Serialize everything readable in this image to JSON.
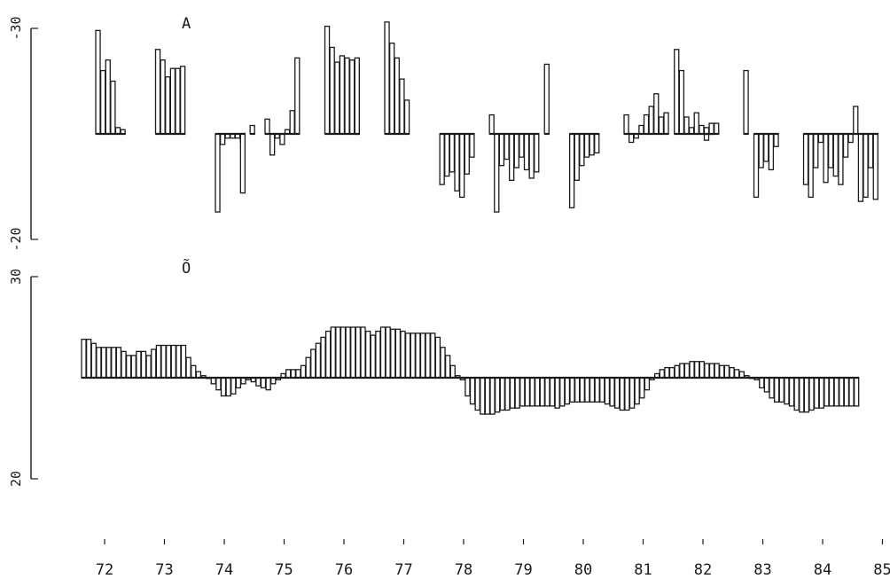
{
  "chart_data": [
    {
      "type": "bar",
      "label": "A",
      "baseline": -25,
      "ylim": [
        -20,
        -30
      ],
      "yticks": [
        {
          "value": -30,
          "label": "-30"
        },
        {
          "value": -20,
          "label": "-20"
        }
      ],
      "x_range": [
        72,
        85
      ],
      "bins_per_year": 12,
      "groups": [
        {
          "start": 72.0,
          "values": [
            -29.9,
            -28.0,
            -28.5,
            -27.5,
            -25.3,
            -25.2
          ]
        },
        {
          "start": 73.0,
          "values": [
            -29.0,
            -28.5,
            -27.7,
            -28.1,
            -28.1,
            -28.2
          ]
        },
        {
          "start": 74.0,
          "values": [
            -21.3,
            -24.5,
            -24.8,
            -24.8,
            -24.8,
            -24.6
          ]
        },
        {
          "start": 74.42,
          "values": [
            -22.2
          ]
        },
        {
          "start": 74.58,
          "values": [
            -25.4
          ]
        },
        {
          "start": 74.83,
          "values": [
            -25.7,
            -24.0,
            -24.8,
            -24.5,
            -25.2,
            -26.1,
            -28.6
          ]
        },
        {
          "start": 75.83,
          "values": [
            -30.1,
            -29.1,
            -28.4,
            -28.7,
            -28.6,
            -28.5,
            -28.2
          ]
        },
        {
          "start": 76.33,
          "values": [
            -28.6
          ]
        },
        {
          "start": 76.83,
          "values": [
            -30.3,
            -29.3,
            -28.6,
            -27.6,
            -26.6
          ]
        },
        {
          "start": 77.75,
          "values": [
            -22.6,
            -23.0,
            -23.2,
            -22.3,
            -22.0,
            -23.1,
            -23.9
          ]
        },
        {
          "start": 78.58,
          "values": [
            -25.9,
            -21.3,
            -23.5,
            -23.8,
            -22.8,
            -23.4,
            -23.9,
            -23.3,
            -22.9,
            -23.2
          ]
        },
        {
          "start": 79.5,
          "values": [
            -28.3
          ]
        },
        {
          "start": 79.92,
          "values": [
            -21.5,
            -22.8,
            -23.5,
            -23.9,
            -24.0,
            -24.1
          ]
        },
        {
          "start": 80.83,
          "values": [
            -25.9,
            -24.6,
            -24.8,
            -25.4,
            -25.9,
            -26.3,
            -26.9,
            -25.8,
            -26.0
          ]
        },
        {
          "start": 81.67,
          "values": [
            -29.0,
            -28.0,
            -25.8,
            -25.3,
            -26.0,
            -25.4,
            -24.7,
            -25.5
          ]
        },
        {
          "start": 82.17,
          "values": [
            -25.3,
            -25.5,
            -25.5
          ]
        },
        {
          "start": 82.83,
          "values": [
            -28.0
          ]
        },
        {
          "start": 83.0,
          "values": [
            -22.0,
            -23.4,
            -23.7,
            -23.3,
            -24.4
          ]
        },
        {
          "start": 83.83,
          "values": [
            -22.6,
            -22.0,
            -23.4,
            -24.6,
            -22.7,
            -23.4,
            -23.0,
            -22.6,
            -23.9,
            -24.6,
            -26.3,
            -21.8,
            -22.0,
            -23.4,
            -21.9
          ]
        }
      ]
    },
    {
      "type": "bar",
      "label": "Õ",
      "baseline": 25,
      "ylim": [
        20,
        30
      ],
      "yticks": [
        {
          "value": 30,
          "label": "30"
        },
        {
          "value": 20,
          "label": "20"
        }
      ],
      "x_range": [
        72,
        85
      ],
      "bins_per_year": 12,
      "groups": [
        {
          "start": 72.0,
          "values": [
            26.9,
            26.9,
            26.7,
            26.5,
            26.5,
            26.5,
            26.5,
            26.5,
            26.3,
            26.1,
            26.1,
            26.3,
            26.3,
            26.1,
            26.4,
            26.6,
            26.6,
            26.6,
            26.6,
            26.6,
            26.6,
            26.0,
            25.6,
            25.3,
            25.1,
            25.0,
            24.7,
            24.4,
            24.1,
            24.1,
            24.2,
            24.5,
            24.7,
            24.9,
            24.8,
            24.6,
            24.5,
            24.4,
            24.7,
            24.9,
            25.2,
            25.4,
            25.4,
            25.4,
            25.6,
            26.0,
            26.4,
            26.7,
            27.0,
            27.3,
            27.5,
            27.5,
            27.5,
            27.5,
            27.5,
            27.5,
            27.5,
            27.3,
            27.1,
            27.3,
            27.5,
            27.5,
            27.4,
            27.4,
            27.3,
            27.2,
            27.2,
            27.2,
            27.2,
            27.2,
            27.2,
            27.0,
            26.5,
            26.1,
            25.6,
            25.1
          ]
        },
        {
          "start": 78.33,
          "values": [
            24.9,
            24.1,
            23.7,
            23.4,
            23.2,
            23.2,
            23.2,
            23.3,
            23.4,
            23.4,
            23.5,
            23.5,
            23.6,
            23.6,
            23.6,
            23.6,
            23.6,
            23.6,
            23.6,
            23.5,
            23.6,
            23.7,
            23.8,
            23.8,
            23.8,
            23.8,
            23.8,
            23.8,
            23.8,
            23.7,
            23.6,
            23.5,
            23.4,
            23.4,
            23.5,
            23.7,
            24.0,
            24.4,
            24.9
          ]
        },
        {
          "start": 81.58,
          "values": [
            25.2,
            25.4,
            25.5,
            25.5,
            25.6,
            25.7,
            25.7,
            25.8,
            25.8,
            25.8,
            25.7,
            25.7,
            25.7,
            25.6,
            25.6,
            25.5,
            25.4,
            25.3,
            25.1,
            25.0,
            24.9
          ]
        },
        {
          "start": 83.33,
          "values": [
            24.5,
            24.3,
            24.0,
            23.8,
            23.8,
            23.7,
            23.6,
            23.4,
            23.3,
            23.3,
            23.4,
            23.5,
            23.5,
            23.6,
            23.6,
            23.6,
            23.6,
            23.6,
            23.6,
            23.6
          ]
        }
      ]
    }
  ],
  "x_axis": {
    "ticks": [
      {
        "value": 72,
        "label": "72"
      },
      {
        "value": 73,
        "label": "73"
      },
      {
        "value": 74,
        "label": "74"
      },
      {
        "value": 75,
        "label": "75"
      },
      {
        "value": 76,
        "label": "76"
      },
      {
        "value": 77,
        "label": "77"
      },
      {
        "value": 78,
        "label": "78"
      },
      {
        "value": 79,
        "label": "79"
      },
      {
        "value": 80,
        "label": "80"
      },
      {
        "value": 81,
        "label": "81"
      },
      {
        "value": 82,
        "label": "82"
      },
      {
        "value": 83,
        "label": "83"
      },
      {
        "value": 84,
        "label": "84"
      },
      {
        "value": 85,
        "label": "85"
      }
    ]
  }
}
